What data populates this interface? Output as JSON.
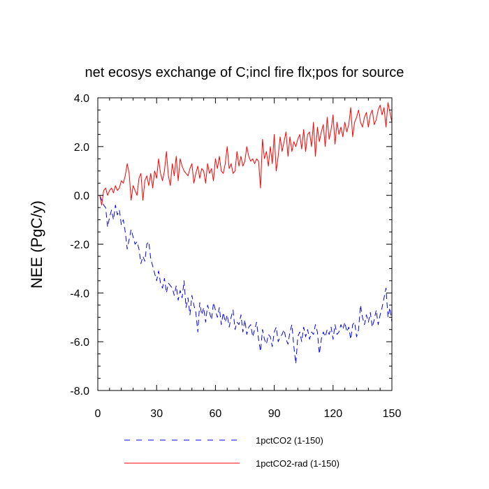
{
  "chart_data": {
    "type": "line",
    "title": "net ecosys exchange of C;incl fire flx;pos for source",
    "xlabel": "",
    "ylabel": "NEE  (PgC/y)",
    "xlim": [
      0,
      150
    ],
    "ylim": [
      -8,
      4
    ],
    "x_ticks": [
      0,
      30,
      60,
      90,
      120,
      150
    ],
    "x_tick_labels": [
      "0",
      "30",
      "60",
      "90",
      "120",
      "150"
    ],
    "y_ticks": [
      -8,
      -6,
      -4,
      -2,
      0,
      2,
      4
    ],
    "y_tick_labels": [
      "-8.0",
      "-6.0",
      "-4.0",
      "-2.0",
      "0.0",
      "2.0",
      "4.0"
    ],
    "grid": false,
    "legend_position": "bottom",
    "series": [
      {
        "name": "1pctCO2 (1-150)",
        "color": "#0000ff",
        "style": "dashed",
        "x_start": 1,
        "values": [
          0.0,
          -0.2,
          -0.4,
          -0.5,
          -1.3,
          -0.9,
          -0.6,
          -1.0,
          -0.4,
          -0.8,
          -0.6,
          -1.2,
          -1.0,
          -1.5,
          -2.2,
          -1.8,
          -1.4,
          -1.7,
          -2.0,
          -1.9,
          -2.2,
          -2.8,
          -2.5,
          -2.7,
          -2.0,
          -1.9,
          -2.6,
          -2.9,
          -3.2,
          -3.5,
          -3.1,
          -3.6,
          -3.8,
          -3.4,
          -4.0,
          -3.6,
          -3.7,
          -3.8,
          -4.1,
          -3.7,
          -4.3,
          -3.9,
          -4.2,
          -3.5,
          -4.6,
          -4.2,
          -4.9,
          -4.1,
          -4.5,
          -4.8,
          -5.6,
          -4.4,
          -4.9,
          -4.6,
          -5.2,
          -4.5,
          -4.8,
          -5.1,
          -4.4,
          -4.7,
          -5.0,
          -4.6,
          -5.3,
          -4.8,
          -5.2,
          -4.9,
          -5.4,
          -5.0,
          -4.7,
          -5.5,
          -5.2,
          -5.3,
          -4.9,
          -5.6,
          -5.1,
          -5.7,
          -5.4,
          -5.3,
          -5.8,
          -5.5,
          -5.2,
          -5.9,
          -6.4,
          -5.5,
          -5.9,
          -6.1,
          -5.7,
          -5.8,
          -6.2,
          -5.6,
          -5.4,
          -6.0,
          -5.8,
          -5.7,
          -5.5,
          -5.9,
          -6.1,
          -5.6,
          -5.3,
          -6.2,
          -6.9,
          -5.8,
          -5.6,
          -6.0,
          -5.4,
          -5.8,
          -5.5,
          -5.9,
          -5.6,
          -5.7,
          -5.3,
          -5.6,
          -6.5,
          -5.9,
          -5.6,
          -5.8,
          -5.5,
          -5.7,
          -5.4,
          -5.9,
          -5.3,
          -5.7,
          -5.6,
          -5.3,
          -5.5,
          -5.2,
          -5.6,
          -5.4,
          -5.9,
          -5.3,
          -5.2,
          -5.8,
          -5.5,
          -4.5,
          -5.0,
          -5.3,
          -4.9,
          -5.2,
          -4.8,
          -5.4,
          -5.1,
          -4.7,
          -5.3,
          -4.9,
          -4.6,
          -4.2,
          -3.8,
          -5.0,
          -4.6,
          -5.2
        ]
      },
      {
        "name": "1pctCO2-rad (1-150)",
        "color": "#ff0000",
        "style": "solid",
        "x_start": 1,
        "values": [
          0.0,
          -0.4,
          0.2,
          0.3,
          0.0,
          0.2,
          0.3,
          0.1,
          0.4,
          0.2,
          0.3,
          0.6,
          0.5,
          0.8,
          1.3,
          0.9,
          -0.2,
          0.4,
          0.2,
          0.0,
          0.7,
          0.9,
          -0.2,
          0.6,
          0.8,
          0.4,
          0.9,
          0.3,
          1.0,
          0.7,
          1.5,
          0.9,
          0.6,
          1.0,
          1.8,
          0.8,
          0.4,
          1.3,
          0.8,
          1.6,
          0.6,
          1.5,
          1.2,
          1.0,
          0.9,
          0.8,
          1.1,
          1.3,
          0.5,
          0.9,
          1.2,
          0.7,
          1.1,
          1.0,
          0.5,
          1.3,
          0.9,
          1.1,
          0.6,
          1.5,
          1.1,
          1.6,
          1.0,
          0.9,
          1.3,
          2.0,
          1.1,
          1.3,
          0.9,
          1.0,
          1.8,
          1.2,
          1.6,
          1.2,
          1.4,
          2.0,
          1.6,
          1.4,
          1.5,
          1.3,
          1.5,
          1.4,
          0.3,
          2.3,
          1.5,
          1.8,
          1.2,
          2.0,
          1.3,
          2.5,
          1.0,
          1.6,
          2.4,
          1.8,
          2.2,
          2.6,
          1.6,
          2.4,
          1.8,
          2.2,
          2.0,
          2.3,
          2.5,
          1.9,
          2.7,
          1.8,
          2.5,
          2.6,
          2.0,
          3.0,
          1.6,
          2.8,
          2.2,
          2.6,
          2.9,
          2.0,
          3.2,
          2.3,
          2.7,
          3.3,
          2.1,
          3.0,
          2.5,
          2.8,
          2.4,
          3.0,
          2.6,
          2.9,
          3.6,
          2.4,
          3.0,
          3.2,
          3.5,
          3.0,
          2.8,
          3.2,
          3.4,
          2.8,
          3.3,
          3.5,
          2.9,
          3.1,
          3.5,
          3.7,
          3.3,
          3.6,
          2.8,
          3.8,
          3.4,
          3.0
        ]
      }
    ]
  }
}
